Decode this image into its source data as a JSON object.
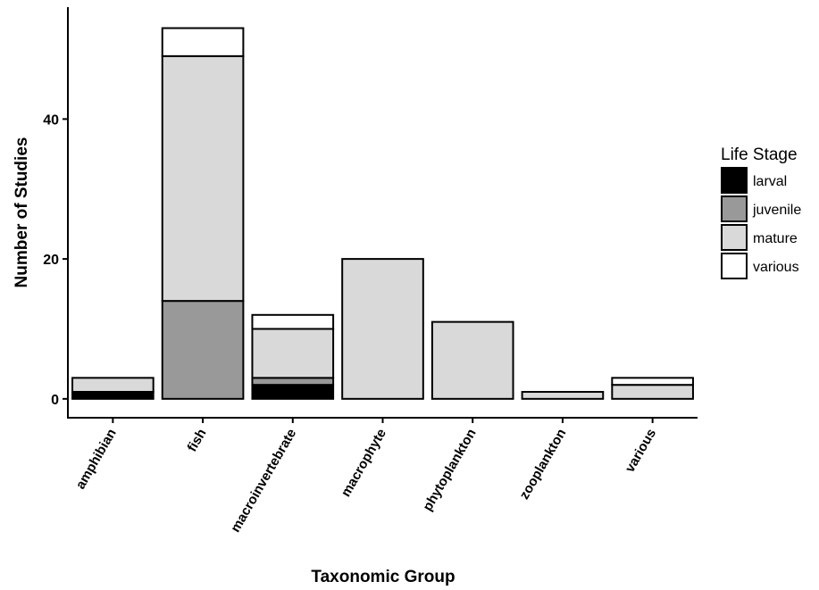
{
  "chart_data": {
    "type": "bar",
    "stacked": true,
    "categories": [
      "amphibian",
      "fish",
      "macroinvertebrate",
      "macrophyte",
      "phytoplankton",
      "zooplankton",
      "various"
    ],
    "series": [
      {
        "name": "larval",
        "color": "#000000",
        "values": [
          1,
          0,
          2,
          0,
          0,
          0,
          0
        ]
      },
      {
        "name": "juvenile",
        "color": "#999999",
        "values": [
          0,
          14,
          1,
          0,
          0,
          0,
          0
        ]
      },
      {
        "name": "mature",
        "color": "#d9d9d9",
        "values": [
          2,
          35,
          7,
          20,
          11,
          1,
          2
        ]
      },
      {
        "name": "various",
        "color": "#ffffff",
        "values": [
          0,
          4,
          2,
          0,
          0,
          0,
          1
        ]
      }
    ],
    "xlabel": "Taxonomic Group",
    "ylabel": "Number of Studies",
    "yticks": [
      0,
      20,
      40
    ],
    "ylim": [
      -2.7,
      56
    ],
    "legend": {
      "title": "Life Stage",
      "position": "right",
      "entries": [
        "larval",
        "juvenile",
        "mature",
        "various"
      ]
    },
    "grid": false
  }
}
